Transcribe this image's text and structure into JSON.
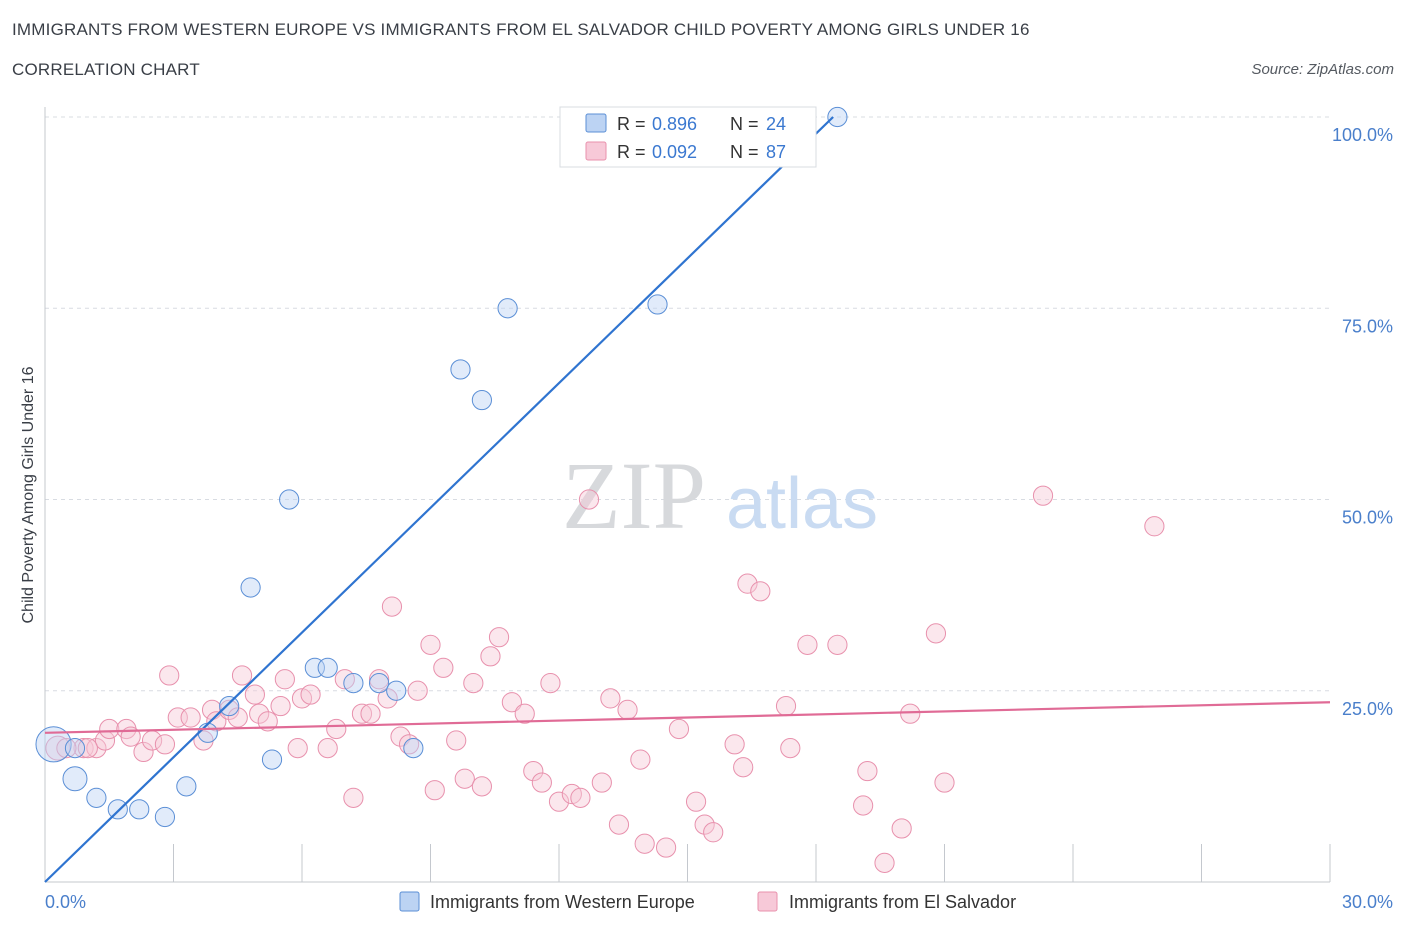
{
  "title": "IMMIGRANTS FROM WESTERN EUROPE VS IMMIGRANTS FROM EL SALVADOR CHILD POVERTY AMONG GIRLS UNDER 16",
  "subtitle": "CORRELATION CHART",
  "source": "Source: ZipAtlas.com",
  "watermark": {
    "zip": "ZIP",
    "atlas": "atlas"
  },
  "colors": {
    "blue": "#5b8fd6",
    "blue_fill": "#bcd3f3",
    "blue_line": "#2f74d0",
    "pink": "#e891ad",
    "pink_fill": "#f7c9d8",
    "pink_line": "#e06b96",
    "axis_label": "#4a7fcb",
    "grid": "#d8dce2"
  },
  "chart_data": {
    "type": "scatter",
    "xlabel": "",
    "ylabel": "Child Poverty Among Girls Under 16",
    "xlim": [
      0,
      30
    ],
    "ylim": [
      0,
      100
    ],
    "x_tick_labels": [
      {
        "value": 0,
        "label": "0.0%"
      },
      {
        "value": 30,
        "label": "30.0%"
      }
    ],
    "y_tick_labels": [
      {
        "value": 25,
        "label": "25.0%"
      },
      {
        "value": 50,
        "label": "50.0%"
      },
      {
        "value": 75,
        "label": "75.0%"
      },
      {
        "value": 100,
        "label": "100.0%"
      }
    ],
    "grid": true,
    "legend_position": "top-center",
    "stats": [
      {
        "r_label": "R =",
        "r": "0.896",
        "n_label": "N =",
        "n": "24"
      },
      {
        "r_label": "R =",
        "r": "0.092",
        "n_label": "N =",
        "n": "87"
      }
    ],
    "series": [
      {
        "name": "Immigrants from Western Europe",
        "color": "blue",
        "trend": [
          [
            0,
            0
          ],
          [
            18.4,
            100
          ]
        ],
        "points": [
          [
            0.2,
            18,
            2.2
          ],
          [
            0.7,
            17.5,
            1.2
          ],
          [
            0.7,
            13.5,
            1.5
          ],
          [
            1.2,
            11,
            1.2
          ],
          [
            1.7,
            9.5,
            1.2
          ],
          [
            2.2,
            9.5,
            1.2
          ],
          [
            2.8,
            8.5,
            1.2
          ],
          [
            3.3,
            12.5,
            1.2
          ],
          [
            3.8,
            19.5,
            1.2
          ],
          [
            4.3,
            23,
            1.2
          ],
          [
            4.8,
            38.5,
            1.2
          ],
          [
            5.3,
            16,
            1.2
          ],
          [
            5.7,
            50,
            1.2
          ],
          [
            6.3,
            28,
            1.2
          ],
          [
            6.6,
            28,
            1.2
          ],
          [
            7.2,
            26,
            1.2
          ],
          [
            7.8,
            26,
            1.2
          ],
          [
            8.2,
            25,
            1.2
          ],
          [
            8.6,
            17.5,
            1.2
          ],
          [
            9.7,
            67,
            1.2
          ],
          [
            10.2,
            63,
            1.2
          ],
          [
            10.8,
            75,
            1.2
          ],
          [
            14.3,
            75.5,
            1.2
          ],
          [
            18.5,
            100,
            1.2
          ]
        ]
      },
      {
        "name": "Immigrants from El Salvador",
        "color": "pink",
        "trend": [
          [
            0,
            19.5
          ],
          [
            30,
            23.5
          ]
        ],
        "points": [
          [
            0.3,
            17.5,
            1.5
          ],
          [
            0.9,
            17.5,
            1.2
          ],
          [
            1.2,
            17.5,
            1.2
          ],
          [
            1.4,
            18.5,
            1.2
          ],
          [
            1.5,
            20,
            1.2
          ],
          [
            1.9,
            20,
            1.2
          ],
          [
            2.0,
            19,
            1.2
          ],
          [
            2.3,
            17,
            1.2
          ],
          [
            2.5,
            18.5,
            1.2
          ],
          [
            2.8,
            18,
            1.2
          ],
          [
            2.9,
            27,
            1.2
          ],
          [
            3.1,
            21.5,
            1.2
          ],
          [
            3.4,
            21.5,
            1.2
          ],
          [
            3.7,
            18.5,
            1.2
          ],
          [
            3.9,
            22.5,
            1.2
          ],
          [
            4.0,
            21,
            1.2
          ],
          [
            4.3,
            22.5,
            1.2
          ],
          [
            4.5,
            21.5,
            1.2
          ],
          [
            4.6,
            27,
            1.2
          ],
          [
            4.9,
            24.5,
            1.2
          ],
          [
            5.0,
            22,
            1.2
          ],
          [
            5.2,
            21,
            1.2
          ],
          [
            5.5,
            23,
            1.2
          ],
          [
            5.6,
            26.5,
            1.2
          ],
          [
            5.9,
            17.5,
            1.2
          ],
          [
            6.0,
            24,
            1.2
          ],
          [
            6.2,
            24.5,
            1.2
          ],
          [
            6.6,
            17.5,
            1.2
          ],
          [
            6.8,
            20,
            1.2
          ],
          [
            7.0,
            26.5,
            1.2
          ],
          [
            7.2,
            11,
            1.2
          ],
          [
            7.4,
            22,
            1.2
          ],
          [
            7.6,
            22,
            1.2
          ],
          [
            7.8,
            26.5,
            1.2
          ],
          [
            8.0,
            24,
            1.2
          ],
          [
            8.1,
            36,
            1.2
          ],
          [
            8.3,
            19,
            1.2
          ],
          [
            8.5,
            18,
            1.2
          ],
          [
            8.7,
            25,
            1.2
          ],
          [
            9.0,
            31,
            1.2
          ],
          [
            9.1,
            12,
            1.2
          ],
          [
            9.3,
            28,
            1.2
          ],
          [
            9.6,
            18.5,
            1.2
          ],
          [
            9.8,
            13.5,
            1.2
          ],
          [
            10.0,
            26,
            1.2
          ],
          [
            10.2,
            12.5,
            1.2
          ],
          [
            10.4,
            29.5,
            1.2
          ],
          [
            10.6,
            32,
            1.2
          ],
          [
            10.9,
            23.5,
            1.2
          ],
          [
            11.2,
            22,
            1.2
          ],
          [
            11.4,
            14.5,
            1.2
          ],
          [
            11.6,
            13,
            1.2
          ],
          [
            11.8,
            26,
            1.2
          ],
          [
            12.0,
            10.5,
            1.2
          ],
          [
            12.3,
            11.5,
            1.2
          ],
          [
            12.5,
            11,
            1.2
          ],
          [
            12.7,
            50,
            1.2
          ],
          [
            13.0,
            13,
            1.2
          ],
          [
            13.2,
            24,
            1.2
          ],
          [
            13.4,
            7.5,
            1.2
          ],
          [
            13.6,
            22.5,
            1.2
          ],
          [
            13.9,
            16,
            1.2
          ],
          [
            14.0,
            5,
            1.2
          ],
          [
            14.5,
            4.5,
            1.2
          ],
          [
            14.8,
            20,
            1.2
          ],
          [
            15.2,
            10.5,
            1.2
          ],
          [
            15.4,
            7.5,
            1.2
          ],
          [
            15.6,
            6.5,
            1.2
          ],
          [
            16.1,
            18,
            1.2
          ],
          [
            16.3,
            15,
            1.2
          ],
          [
            16.4,
            39,
            1.2
          ],
          [
            16.7,
            38,
            1.2
          ],
          [
            17.3,
            23,
            1.2
          ],
          [
            17.4,
            17.5,
            1.2
          ],
          [
            17.8,
            31,
            1.2
          ],
          [
            18.5,
            31,
            1.2
          ],
          [
            19.1,
            10,
            1.2
          ],
          [
            19.2,
            14.5,
            1.2
          ],
          [
            19.6,
            2.5,
            1.2
          ],
          [
            20.0,
            7,
            1.2
          ],
          [
            20.2,
            22,
            1.2
          ],
          [
            20.8,
            32.5,
            1.2
          ],
          [
            21.0,
            13,
            1.2
          ],
          [
            23.3,
            50.5,
            1.2
          ],
          [
            25.9,
            46.5,
            1.2
          ],
          [
            0.5,
            17.5,
            1.2
          ],
          [
            1.0,
            17.5,
            1.2
          ]
        ]
      }
    ]
  }
}
